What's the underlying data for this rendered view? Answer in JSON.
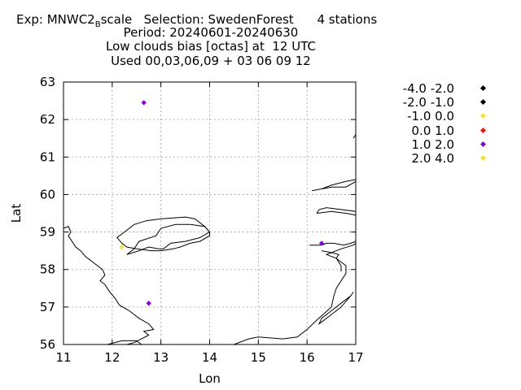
{
  "chart_data": {
    "type": "scatter",
    "title_lines": [
      "Period: 20240601-20240630",
      "Low clouds bias [octas] at  12 UTC",
      "Used 00,03,06,09 + 03 06 09 12"
    ],
    "title_line1": {
      "exp_prefix": "Exp: MNWC2",
      "exp_subscript": "B",
      "exp_suffix": "scale",
      "selection": "Selection: SwedenForest",
      "stations": "4 stations"
    },
    "xlabel": "Lon",
    "ylabel": "Lat",
    "xlim": [
      11,
      17
    ],
    "ylim": [
      56,
      63
    ],
    "xticks": [
      "11",
      "12",
      "13",
      "14",
      "15",
      "16",
      "17"
    ],
    "yticks": [
      "56",
      "57",
      "58",
      "59",
      "60",
      "61",
      "62",
      "63"
    ],
    "grid": true,
    "legend_position": "right",
    "legend": [
      {
        "label": "-4.0 -2.0",
        "color": "#000000"
      },
      {
        "label": "-2.0 -1.0",
        "color": "#000000"
      },
      {
        "label": "-1.0 0.0",
        "color": "#f0e442"
      },
      {
        "label": "0.0 1.0",
        "color": "#e41a1c"
      },
      {
        "label": "1.0 2.0",
        "color": "#8b00d6"
      },
      {
        "label": "2.0 4.0",
        "color": "#f0e442"
      }
    ],
    "points": [
      {
        "lon": 12.65,
        "lat": 62.45,
        "color": "#8b00d6"
      },
      {
        "lon": 12.2,
        "lat": 58.6,
        "color": "#f0e442"
      },
      {
        "lon": 12.75,
        "lat": 57.1,
        "color": "#8b00d6"
      },
      {
        "lon": 16.3,
        "lat": 58.7,
        "color": "#8b00d6"
      }
    ],
    "coastlines": [
      [
        [
          11.0,
          59.1
        ],
        [
          11.1,
          59.15
        ],
        [
          11.15,
          59.0
        ],
        [
          11.1,
          58.9
        ],
        [
          11.25,
          58.6
        ],
        [
          11.35,
          58.5
        ],
        [
          11.45,
          58.35
        ],
        [
          11.55,
          58.25
        ],
        [
          11.6,
          58.2
        ],
        [
          11.7,
          58.1
        ],
        [
          11.8,
          58.0
        ],
        [
          11.85,
          57.85
        ],
        [
          11.75,
          57.7
        ],
        [
          11.85,
          57.6
        ],
        [
          11.95,
          57.4
        ],
        [
          12.05,
          57.25
        ],
        [
          12.15,
          57.05
        ],
        [
          12.35,
          56.9
        ],
        [
          12.55,
          56.7
        ],
        [
          12.75,
          56.55
        ],
        [
          12.85,
          56.4
        ],
        [
          12.65,
          56.35
        ],
        [
          12.75,
          56.25
        ],
        [
          12.6,
          56.15
        ],
        [
          12.45,
          56.05
        ],
        [
          12.3,
          56.0
        ]
      ],
      [
        [
          12.3,
          58.4
        ],
        [
          12.45,
          58.55
        ],
        [
          12.55,
          58.75
        ],
        [
          12.9,
          58.9
        ],
        [
          13.0,
          59.1
        ],
        [
          13.3,
          59.2
        ],
        [
          13.6,
          59.2
        ],
        [
          13.9,
          59.15
        ],
        [
          14.0,
          59.0
        ],
        [
          13.8,
          58.85
        ],
        [
          13.5,
          58.75
        ],
        [
          13.2,
          58.7
        ],
        [
          13.05,
          58.55
        ],
        [
          12.95,
          58.55
        ],
        [
          12.75,
          58.6
        ],
        [
          12.55,
          58.5
        ],
        [
          12.3,
          58.4
        ]
      ],
      [
        [
          13.4,
          58.6
        ],
        [
          13.6,
          58.7
        ],
        [
          13.8,
          58.75
        ],
        [
          14.0,
          58.9
        ],
        [
          14.0,
          59.0
        ],
        [
          13.9,
          59.15
        ],
        [
          13.7,
          59.35
        ],
        [
          13.5,
          59.4
        ],
        [
          13.0,
          59.35
        ],
        [
          12.7,
          59.3
        ],
        [
          12.45,
          59.2
        ],
        [
          12.25,
          59.0
        ],
        [
          12.1,
          58.85
        ],
        [
          12.2,
          58.7
        ],
        [
          12.3,
          58.6
        ],
        [
          12.5,
          58.55
        ],
        [
          12.8,
          58.5
        ],
        [
          13.0,
          58.5
        ],
        [
          13.25,
          58.55
        ],
        [
          13.4,
          58.6
        ]
      ],
      [
        [
          11.9,
          56.0
        ],
        [
          12.2,
          56.1
        ],
        [
          12.5,
          56.1
        ],
        [
          12.6,
          56.0
        ]
      ],
      [
        [
          14.5,
          56.0
        ],
        [
          14.8,
          56.15
        ],
        [
          15.0,
          56.2
        ],
        [
          15.5,
          56.15
        ],
        [
          15.8,
          56.2
        ],
        [
          16.0,
          56.4
        ],
        [
          16.2,
          56.65
        ],
        [
          16.5,
          57.0
        ],
        [
          16.55,
          57.3
        ],
        [
          16.6,
          57.5
        ],
        [
          16.8,
          57.9
        ],
        [
          16.8,
          58.1
        ],
        [
          16.6,
          58.3
        ],
        [
          16.4,
          58.4
        ],
        [
          16.7,
          58.55
        ],
        [
          16.95,
          58.65
        ],
        [
          17.0,
          58.7
        ]
      ],
      [
        [
          16.05,
          58.65
        ],
        [
          16.3,
          58.65
        ],
        [
          16.4,
          58.7
        ],
        [
          16.55,
          58.7
        ],
        [
          16.75,
          58.65
        ],
        [
          16.9,
          58.7
        ],
        [
          17.0,
          58.75
        ]
      ],
      [
        [
          16.3,
          58.5
        ],
        [
          16.5,
          58.45
        ],
        [
          16.65,
          58.4
        ],
        [
          16.6,
          58.3
        ],
        [
          16.7,
          58.1
        ],
        [
          16.7,
          57.95
        ]
      ],
      [
        [
          16.1,
          60.1
        ],
        [
          16.5,
          60.2
        ],
        [
          16.8,
          60.2
        ],
        [
          17.0,
          60.35
        ],
        [
          17.0,
          60.4
        ],
        [
          16.8,
          60.35
        ],
        [
          16.5,
          60.25
        ],
        [
          16.3,
          60.15
        ],
        [
          16.1,
          60.1
        ]
      ],
      [
        [
          16.2,
          59.5
        ],
        [
          16.5,
          59.55
        ],
        [
          16.8,
          59.5
        ],
        [
          17.0,
          59.45
        ],
        [
          17.0,
          59.55
        ],
        [
          16.7,
          59.6
        ],
        [
          16.4,
          59.65
        ],
        [
          16.25,
          59.6
        ],
        [
          16.2,
          59.5
        ]
      ],
      [
        [
          16.3,
          56.7
        ],
        [
          16.5,
          56.9
        ],
        [
          16.7,
          57.1
        ],
        [
          16.9,
          57.3
        ],
        [
          16.95,
          57.4
        ],
        [
          16.9,
          57.3
        ],
        [
          16.7,
          57.0
        ],
        [
          16.5,
          56.8
        ],
        [
          16.3,
          56.6
        ],
        [
          16.25,
          56.55
        ],
        [
          16.3,
          56.7
        ]
      ],
      [
        [
          16.95,
          61.5
        ],
        [
          17.0,
          61.6
        ]
      ]
    ]
  }
}
